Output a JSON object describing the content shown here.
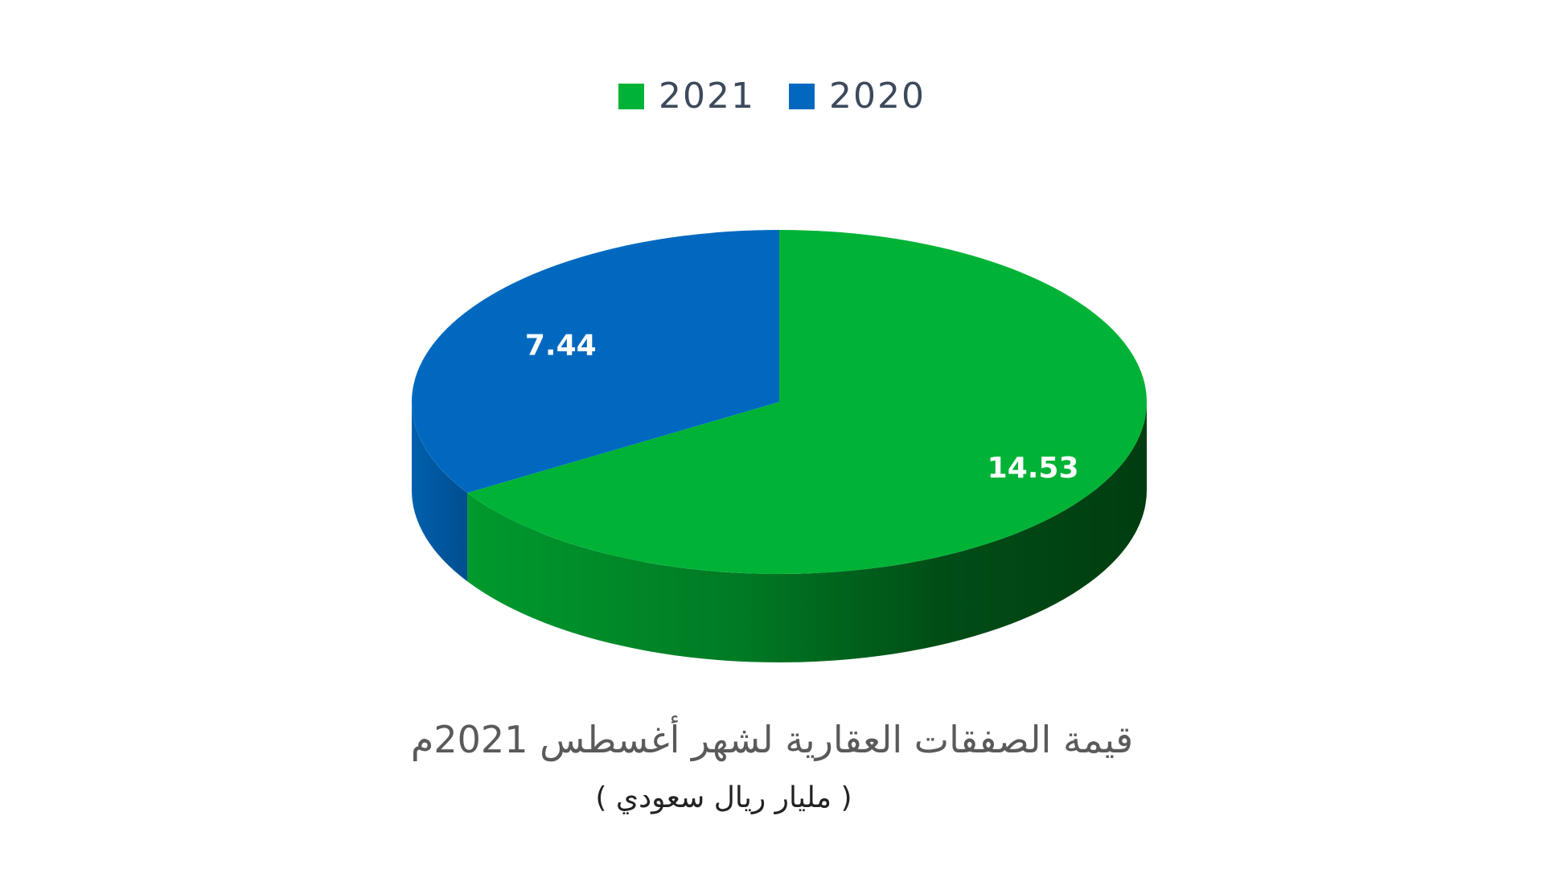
{
  "chart_data": {
    "type": "pie",
    "categories": [
      "2020",
      "2021"
    ],
    "values": [
      7.44,
      14.53
    ],
    "data_labels": [
      "7.44",
      "14.53"
    ],
    "title": "قيمة الصفقات العقارية لشهر أغسطس 2021م",
    "subtitle": "( مليار ريال سعودي )",
    "legend": {
      "placement": "top-center",
      "entries": [
        {
          "name": "2021",
          "color": "#00b336"
        },
        {
          "name": "2020",
          "color": "#0069bf"
        }
      ]
    },
    "colors": {
      "2020": "#0069bf",
      "2021": "#00b336"
    },
    "style": "3d-pie"
  }
}
